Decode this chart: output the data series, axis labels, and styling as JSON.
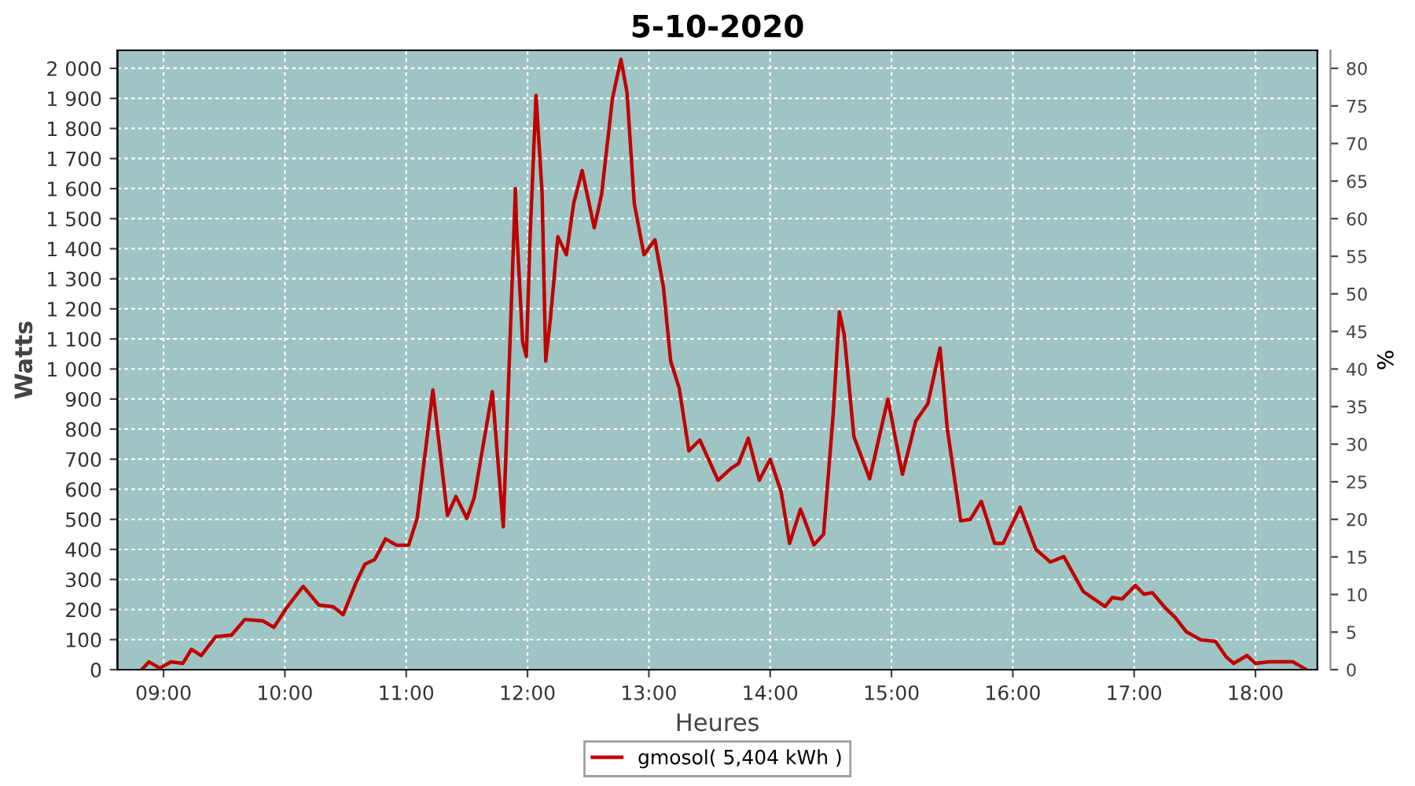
{
  "chart_data": {
    "type": "line",
    "title": "5-10-2020",
    "xlabel": "Heures",
    "ylabel": "Watts",
    "y2label": "%",
    "x": [
      8.82,
      8.88,
      8.97,
      9.06,
      9.16,
      9.23,
      9.31,
      9.43,
      9.56,
      9.67,
      9.82,
      9.91,
      10.02,
      10.15,
      10.28,
      10.4,
      10.48,
      10.59,
      10.66,
      10.74,
      10.83,
      10.92,
      11.02,
      11.09,
      11.22,
      11.34,
      11.41,
      11.5,
      11.56,
      11.71,
      11.8,
      11.85,
      11.9,
      11.91,
      11.96,
      11.99,
      12.02,
      12.07,
      12.12,
      12.15,
      12.19,
      12.25,
      12.32,
      12.38,
      12.45,
      12.55,
      12.61,
      12.7,
      12.77,
      12.82,
      12.88,
      12.96,
      13.05,
      13.12,
      13.18,
      13.25,
      13.33,
      13.42,
      13.57,
      13.68,
      13.74,
      13.82,
      13.91,
      14.0,
      14.09,
      14.16,
      14.25,
      14.36,
      14.44,
      14.52,
      14.57,
      14.61,
      14.69,
      14.82,
      14.97,
      15.09,
      15.2,
      15.3,
      15.4,
      15.46,
      15.57,
      15.65,
      15.74,
      15.85,
      15.92,
      16.06,
      16.19,
      16.31,
      16.42,
      16.58,
      16.76,
      16.82,
      16.9,
      17.01,
      17.08,
      17.15,
      17.26,
      17.34,
      17.43,
      17.55,
      17.67,
      17.76,
      17.82,
      17.93,
      18.0,
      18.11,
      18.31,
      18.42
    ],
    "series": [
      {
        "name": "gmosol( 5,404 kWh )",
        "color": "#c00000",
        "values": [
          0,
          26,
          5,
          26,
          21,
          68,
          47,
          110,
          115,
          167,
          162,
          141,
          209,
          277,
          215,
          209,
          183,
          293,
          351,
          366,
          435,
          414,
          414,
          503,
          930,
          513,
          576,
          503,
          571,
          925,
          475,
          1026,
          1600,
          1471,
          1089,
          1042,
          1429,
          1910,
          1586,
          1026,
          1173,
          1440,
          1380,
          1550,
          1660,
          1470,
          1580,
          1900,
          2030,
          1920,
          1550,
          1380,
          1430,
          1272,
          1026,
          937,
          728,
          764,
          630,
          670,
          686,
          770,
          630,
          700,
          592,
          420,
          534,
          415,
          450,
          853,
          1190,
          1115,
          775,
          635,
          900,
          650,
          827,
          885,
          1070,
          801,
          495,
          500,
          560,
          420,
          420,
          540,
          400,
          358,
          376,
          260,
          210,
          240,
          235,
          280,
          251,
          256,
          204,
          173,
          126,
          99,
          94,
          42,
          21,
          47,
          21,
          26,
          26,
          0
        ]
      }
    ],
    "xlim": [
      8.62,
      18.51
    ],
    "xticks": [
      {
        "value": 9,
        "label": "09:00"
      },
      {
        "value": 10,
        "label": "10:00"
      },
      {
        "value": 11,
        "label": "11:00"
      },
      {
        "value": 12,
        "label": "12:00"
      },
      {
        "value": 13,
        "label": "13:00"
      },
      {
        "value": 14,
        "label": "14:00"
      },
      {
        "value": 15,
        "label": "15:00"
      },
      {
        "value": 16,
        "label": "16:00"
      },
      {
        "value": 17,
        "label": "17:00"
      },
      {
        "value": 18,
        "label": "18:00"
      }
    ],
    "ylim": [
      0,
      2060
    ],
    "yticks": [
      0,
      100,
      200,
      300,
      400,
      500,
      600,
      700,
      800,
      900,
      {
        "value": 1000,
        "label": "1 000"
      },
      {
        "value": 1100,
        "label": "1 100"
      },
      {
        "value": 1200,
        "label": "1 200"
      },
      {
        "value": 1300,
        "label": "1 300"
      },
      {
        "value": 1400,
        "label": "1 400"
      },
      {
        "value": 1500,
        "label": "1 500"
      },
      {
        "value": 1600,
        "label": "1 600"
      },
      {
        "value": 1700,
        "label": "1 700"
      },
      {
        "value": 1800,
        "label": "1 800"
      },
      {
        "value": 1900,
        "label": "1 900"
      },
      {
        "value": 2000,
        "label": "2 000"
      }
    ],
    "y2lim": [
      0,
      82.4
    ],
    "y2ticks": [
      0,
      5,
      10,
      15,
      20,
      25,
      30,
      35,
      40,
      45,
      50,
      55,
      60,
      65,
      70,
      75,
      80
    ],
    "grid": true,
    "legend": "bottom",
    "marker": "none",
    "line_style": "solid"
  }
}
